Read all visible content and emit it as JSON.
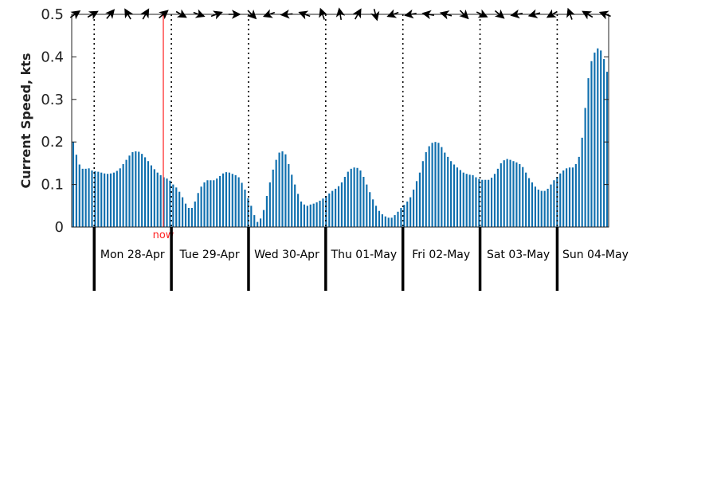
{
  "chart_data": {
    "type": "bar",
    "ylabel": "Current Speed, kts",
    "ylim": [
      0,
      0.5
    ],
    "yticks": [
      "0",
      "0.1",
      "0.2",
      "0.3",
      "0.4",
      "0.5"
    ],
    "ytick_values": [
      0,
      0.1,
      0.2,
      0.3,
      0.4,
      0.5
    ],
    "x_unit": "hours",
    "start_hour": -7,
    "end_hour": 160,
    "bar_color": "#0f6fae",
    "now_color": "#ff2020",
    "now_label": "now",
    "now_hour": 21.5,
    "day_labels": [
      "Mon 28-Apr",
      "Tue 29-Apr",
      "Wed 30-Apr",
      "Thu 01-May",
      "Fri 02-May",
      "Sat 03-May",
      "Sun 04-May"
    ],
    "day_boundaries_hours": [
      0,
      24,
      48,
      72,
      96,
      120,
      144
    ],
    "values": [
      0.2,
      0.17,
      0.147,
      0.137,
      0.137,
      0.138,
      0.133,
      0.131,
      0.13,
      0.128,
      0.126,
      0.125,
      0.126,
      0.128,
      0.132,
      0.138,
      0.148,
      0.158,
      0.168,
      0.176,
      0.178,
      0.177,
      0.172,
      0.164,
      0.155,
      0.145,
      0.136,
      0.128,
      0.122,
      0.117,
      0.114,
      0.109,
      0.1,
      0.093,
      0.083,
      0.07,
      0.055,
      0.045,
      0.045,
      0.06,
      0.08,
      0.095,
      0.105,
      0.11,
      0.11,
      0.11,
      0.114,
      0.12,
      0.126,
      0.129,
      0.128,
      0.125,
      0.122,
      0.117,
      0.104,
      0.088,
      0.068,
      0.05,
      0.028,
      0.012,
      0.02,
      0.04,
      0.073,
      0.105,
      0.135,
      0.158,
      0.175,
      0.178,
      0.171,
      0.148,
      0.123,
      0.1,
      0.078,
      0.06,
      0.053,
      0.05,
      0.053,
      0.055,
      0.058,
      0.062,
      0.067,
      0.073,
      0.079,
      0.085,
      0.09,
      0.096,
      0.105,
      0.118,
      0.13,
      0.137,
      0.14,
      0.139,
      0.133,
      0.118,
      0.1,
      0.082,
      0.065,
      0.05,
      0.038,
      0.03,
      0.025,
      0.022,
      0.022,
      0.028,
      0.036,
      0.045,
      0.052,
      0.06,
      0.07,
      0.088,
      0.108,
      0.128,
      0.155,
      0.176,
      0.19,
      0.198,
      0.2,
      0.198,
      0.188,
      0.175,
      0.165,
      0.155,
      0.147,
      0.14,
      0.134,
      0.128,
      0.125,
      0.123,
      0.122,
      0.117,
      0.113,
      0.111,
      0.111,
      0.111,
      0.116,
      0.125,
      0.137,
      0.15,
      0.157,
      0.16,
      0.158,
      0.155,
      0.152,
      0.148,
      0.141,
      0.128,
      0.115,
      0.105,
      0.095,
      0.088,
      0.085,
      0.085,
      0.09,
      0.1,
      0.11,
      0.118,
      0.126,
      0.133,
      0.138,
      0.14,
      0.14,
      0.148,
      0.165,
      0.21,
      0.28,
      0.35,
      0.39,
      0.41,
      0.42,
      0.415,
      0.395,
      0.365
    ],
    "direction_arrow_angles_deg": [
      -35,
      -30,
      -50,
      -120,
      -60,
      -40,
      30,
      20,
      -20,
      0,
      45,
      160,
      175,
      -160,
      -110,
      -100,
      -60,
      75,
      160,
      170,
      -170,
      -165,
      45,
      25,
      40,
      170,
      165,
      150,
      -110,
      -150,
      -160
    ]
  }
}
